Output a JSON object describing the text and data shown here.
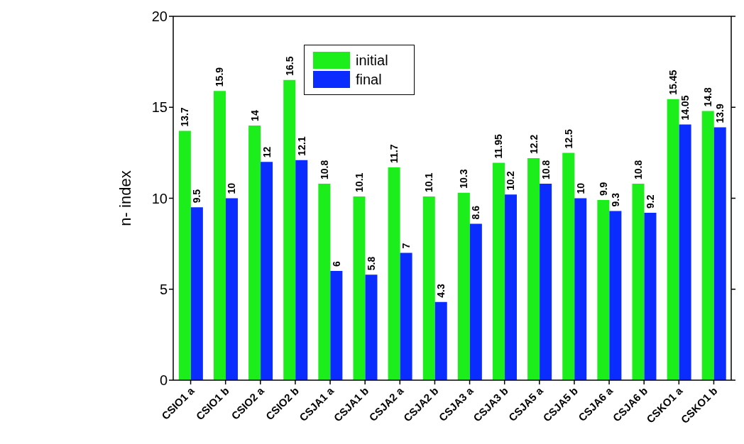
{
  "chart_data": {
    "type": "bar",
    "ylabel": "n- index",
    "categories": [
      "CSIO1 a",
      "CSIO1 b",
      "CSIO2 a",
      "CSIO2 b",
      "CSJA1 a",
      "CSJA1 b",
      "CSJA2 a",
      "CSJA2 b",
      "CSJA3 a",
      "CSJA3 b",
      "CSJA5 a",
      "CSJA5 b",
      "CSJA6 a",
      "CSJA6 b",
      "CSKO1 a",
      "CSKO1 b"
    ],
    "series": [
      {
        "name": "initial",
        "color": "#1cee1c",
        "values": [
          13.7,
          15.9,
          14,
          16.5,
          10.8,
          10.1,
          11.7,
          10.1,
          10.3,
          11.95,
          12.2,
          12.5,
          9.9,
          10.8,
          15.45,
          14.8
        ]
      },
      {
        "name": "final",
        "color": "#0a2cff",
        "values": [
          9.5,
          10,
          12,
          12.1,
          6,
          5.8,
          7,
          4.3,
          8.6,
          10.2,
          10.8,
          10,
          9.3,
          9.2,
          14.05,
          13.9
        ]
      }
    ],
    "ylim": [
      0,
      20
    ],
    "yticks": [
      0,
      5,
      10,
      15,
      20
    ],
    "grid": false,
    "legend": "top",
    "data_labels": true
  }
}
